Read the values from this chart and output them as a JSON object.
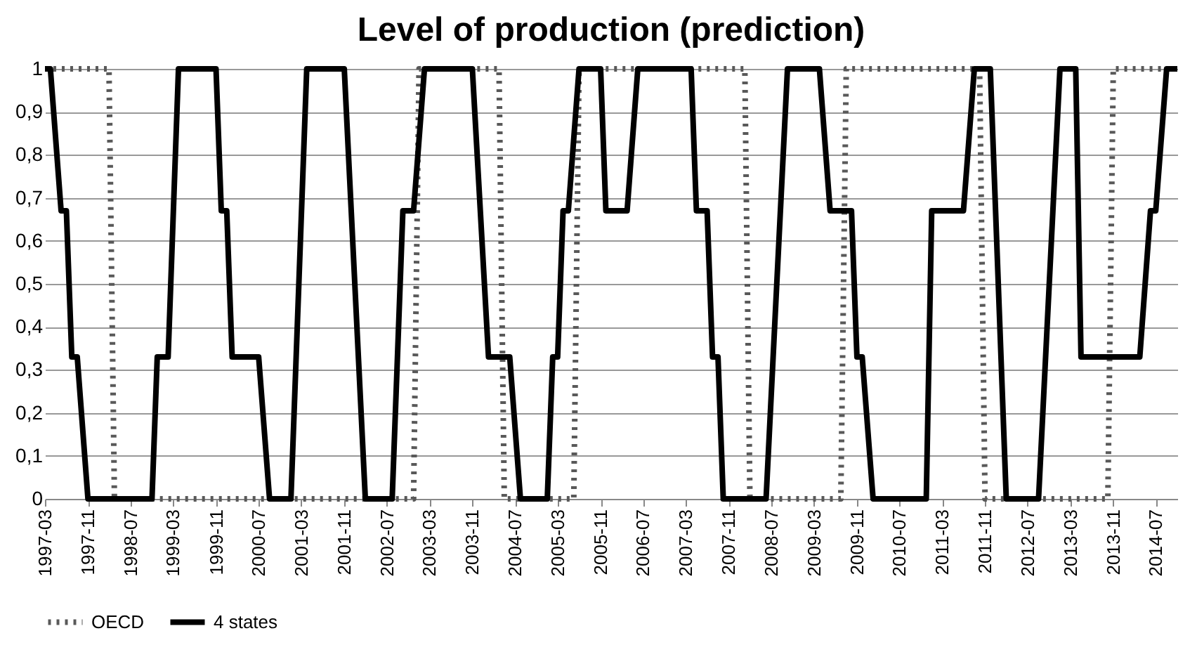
{
  "chart_data": {
    "type": "line",
    "title": "Level of production (prediction)",
    "xlim": [
      "1997-03",
      "2014-11"
    ],
    "xticks": [
      "1997-03",
      "1997-11",
      "1998-07",
      "1999-03",
      "1999-11",
      "2000-07",
      "2001-03",
      "2001-11",
      "2002-07",
      "2003-03",
      "2003-11",
      "2004-07",
      "2005-03",
      "2005-11",
      "2006-07",
      "2007-03",
      "2007-11",
      "2008-07",
      "2009-03",
      "2009-11",
      "2010-07",
      "2011-03",
      "2011-11",
      "2012-07",
      "2013-03",
      "2013-11",
      "2014-07"
    ],
    "ylim": [
      0,
      1
    ],
    "yticks": [
      {
        "value": 0,
        "label": "0"
      },
      {
        "value": 0.1,
        "label": "0,1"
      },
      {
        "value": 0.2,
        "label": "0,2"
      },
      {
        "value": 0.3,
        "label": "0,3"
      },
      {
        "value": 0.4,
        "label": "0,4"
      },
      {
        "value": 0.5,
        "label": "0,5"
      },
      {
        "value": 0.6,
        "label": "0,6"
      },
      {
        "value": 0.7,
        "label": "0,7"
      },
      {
        "value": 0.8,
        "label": "0,8"
      },
      {
        "value": 0.9,
        "label": "0,9"
      },
      {
        "value": 1,
        "label": "1"
      }
    ],
    "grid": "y",
    "legend": "bottom",
    "series": [
      {
        "name": "OECD",
        "color": "#595959",
        "line_style": "dotted",
        "x": [
          "1997-03",
          "1998-03",
          "1998-04",
          "2002-12",
          "2003-01",
          "2004-04",
          "2004-05",
          "2005-06",
          "2005-07",
          "2008-02",
          "2008-03",
          "2009-08",
          "2009-09",
          "2011-10",
          "2011-11",
          "2013-10",
          "2013-11",
          "2014-11"
        ],
        "values": [
          1,
          1,
          0,
          0,
          1,
          1,
          0,
          0,
          1,
          1,
          0,
          0,
          1,
          1,
          0,
          0,
          1,
          1
        ]
      },
      {
        "name": "4 states",
        "color": "#000000",
        "line_style": "solid",
        "x": [
          "1997-03",
          "1997-04",
          "1997-06",
          "1997-07",
          "1997-08",
          "1997-09",
          "1997-11",
          "1998-11",
          "1998-12",
          "1999-02",
          "1999-04",
          "1999-11",
          "1999-12",
          "2000-01",
          "2000-02",
          "2000-07",
          "2000-09",
          "2001-01",
          "2001-04",
          "2001-11",
          "2002-03",
          "2002-08",
          "2002-10",
          "2002-12",
          "2003-02",
          "2003-11",
          "2004-02",
          "2004-06",
          "2004-08",
          "2005-01",
          "2005-02",
          "2005-03",
          "2005-04",
          "2005-05",
          "2005-07",
          "2005-11",
          "2005-12",
          "2006-04",
          "2006-06",
          "2007-04",
          "2007-05",
          "2007-07",
          "2007-08",
          "2007-09",
          "2007-10",
          "2008-06",
          "2008-10",
          "2009-04",
          "2009-06",
          "2009-10",
          "2009-11",
          "2009-12",
          "2010-02",
          "2010-12",
          "2011-01",
          "2011-07",
          "2011-09",
          "2011-12",
          "2012-03",
          "2012-09",
          "2013-01",
          "2013-04",
          "2013-05",
          "2014-04",
          "2014-06",
          "2014-07",
          "2014-09",
          "2014-11"
        ],
        "values": [
          1,
          1,
          0.67,
          0.67,
          0.33,
          0.33,
          0,
          0,
          0.33,
          0.33,
          1,
          1,
          0.67,
          0.67,
          0.33,
          0.33,
          0,
          0,
          1,
          1,
          0,
          0,
          0.67,
          0.67,
          1,
          1,
          0.33,
          0.33,
          0,
          0,
          0.33,
          0.33,
          0.67,
          0.67,
          1,
          1,
          0.67,
          0.67,
          1,
          1,
          0.67,
          0.67,
          0.33,
          0.33,
          0,
          0,
          1,
          1,
          0.67,
          0.67,
          0.33,
          0.33,
          0,
          0,
          0.67,
          0.67,
          1,
          1,
          0,
          0,
          1,
          1,
          0.33,
          0.33,
          0.67,
          0.67,
          1,
          1
        ]
      }
    ]
  }
}
